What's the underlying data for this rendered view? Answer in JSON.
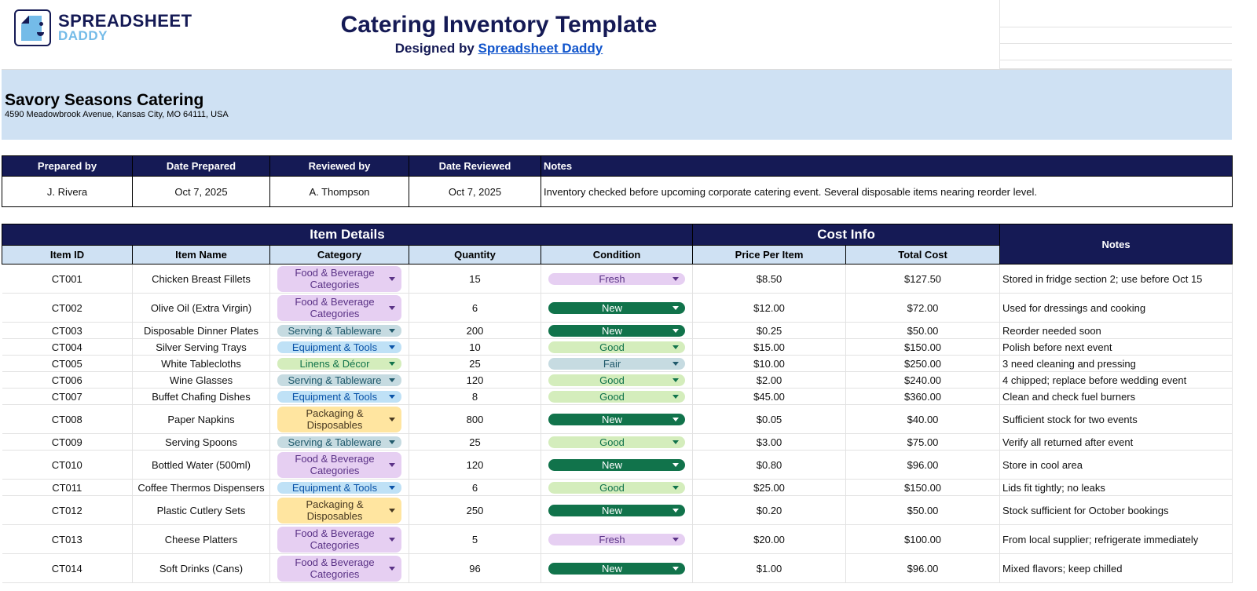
{
  "brand": {
    "line1": "SPREADSHEET",
    "line2": "DADDY"
  },
  "header": {
    "title": "Catering Inventory Template",
    "designed_by": "Designed by",
    "designer_link": "Spreadsheet Daddy"
  },
  "company": {
    "name": "Savory Seasons Catering",
    "address": "4590 Meadowbrook Avenue, Kansas City, MO 64111, USA"
  },
  "meta": {
    "headers": [
      "Prepared by",
      "Date Prepared",
      "Reviewed by",
      "Date Reviewed",
      "Notes"
    ],
    "values": [
      "J. Rivera",
      "Oct 7, 2025",
      "A. Thompson",
      "Oct 7, 2025",
      "Inventory checked before upcoming corporate catering event. Several disposable items nearing reorder level."
    ]
  },
  "inventory": {
    "group_item": "Item Details",
    "group_cost": "Cost Info",
    "notes_header": "Notes",
    "columns": [
      "Item ID",
      "Item Name",
      "Category",
      "Quantity",
      "Condition",
      "Price Per Item",
      "Total Cost"
    ],
    "category_colors": {
      "Food & Beverage Categories": {
        "bg": "#e6cff2",
        "fg": "#5a3286"
      },
      "Serving & Tableware": {
        "bg": "#c6dbe1",
        "fg": "#215a6c"
      },
      "Equipment & Tools": {
        "bg": "#bfe1f6",
        "fg": "#0a53a8"
      },
      "Linens & Décor": {
        "bg": "#d4edbc",
        "fg": "#11734b"
      },
      "Packaging & Disposables": {
        "bg": "#ffe5a0",
        "fg": "#473821"
      }
    },
    "condition_colors": {
      "Fresh": {
        "bg": "#e6cff2",
        "fg": "#5a3286"
      },
      "New": {
        "bg": "#11734b",
        "fg": "#ffffff"
      },
      "Good": {
        "bg": "#d4edbc",
        "fg": "#11734b"
      },
      "Fair": {
        "bg": "#c6dbe1",
        "fg": "#215a6c"
      }
    },
    "rows": [
      {
        "id": "CT001",
        "name": "Chicken Breast Fillets",
        "category": "Food & Beverage Categories",
        "qty": "15",
        "condition": "Fresh",
        "price": "$8.50",
        "total": "$127.50",
        "notes": "Stored in fridge section 2; use before Oct 15"
      },
      {
        "id": "CT002",
        "name": "Olive Oil (Extra Virgin)",
        "category": "Food & Beverage Categories",
        "qty": "6",
        "condition": "New",
        "price": "$12.00",
        "total": "$72.00",
        "notes": "Used for dressings and cooking"
      },
      {
        "id": "CT003",
        "name": "Disposable Dinner Plates",
        "category": "Serving & Tableware",
        "qty": "200",
        "condition": "New",
        "price": "$0.25",
        "total": "$50.00",
        "notes": "Reorder needed soon"
      },
      {
        "id": "CT004",
        "name": "Silver Serving Trays",
        "category": "Equipment & Tools",
        "qty": "10",
        "condition": "Good",
        "price": "$15.00",
        "total": "$150.00",
        "notes": "Polish before next event"
      },
      {
        "id": "CT005",
        "name": "White Tablecloths",
        "category": "Linens & Décor",
        "qty": "25",
        "condition": "Fair",
        "price": "$10.00",
        "total": "$250.00",
        "notes": "3 need cleaning and pressing"
      },
      {
        "id": "CT006",
        "name": "Wine Glasses",
        "category": "Serving & Tableware",
        "qty": "120",
        "condition": "Good",
        "price": "$2.00",
        "total": "$240.00",
        "notes": "4 chipped; replace before wedding event"
      },
      {
        "id": "CT007",
        "name": "Buffet Chafing Dishes",
        "category": "Equipment & Tools",
        "qty": "8",
        "condition": "Good",
        "price": "$45.00",
        "total": "$360.00",
        "notes": "Clean and check fuel burners"
      },
      {
        "id": "CT008",
        "name": "Paper Napkins",
        "category": "Packaging & Disposables",
        "qty": "800",
        "condition": "New",
        "price": "$0.05",
        "total": "$40.00",
        "notes": "Sufficient stock for two events"
      },
      {
        "id": "CT009",
        "name": "Serving Spoons",
        "category": "Serving & Tableware",
        "qty": "25",
        "condition": "Good",
        "price": "$3.00",
        "total": "$75.00",
        "notes": "Verify all returned after event"
      },
      {
        "id": "CT010",
        "name": "Bottled Water (500ml)",
        "category": "Food & Beverage Categories",
        "qty": "120",
        "condition": "New",
        "price": "$0.80",
        "total": "$96.00",
        "notes": "Store in cool area"
      },
      {
        "id": "CT011",
        "name": "Coffee Thermos Dispensers",
        "category": "Equipment & Tools",
        "qty": "6",
        "condition": "Good",
        "price": "$25.00",
        "total": "$150.00",
        "notes": "Lids fit tightly; no leaks"
      },
      {
        "id": "CT012",
        "name": "Plastic Cutlery Sets",
        "category": "Packaging & Disposables",
        "qty": "250",
        "condition": "New",
        "price": "$0.20",
        "total": "$50.00",
        "notes": "Stock sufficient for October bookings"
      },
      {
        "id": "CT013",
        "name": "Cheese Platters",
        "category": "Food & Beverage Categories",
        "qty": "5",
        "condition": "Fresh",
        "price": "$20.00",
        "total": "$100.00",
        "notes": "From local supplier; refrigerate immediately"
      },
      {
        "id": "CT014",
        "name": "Soft Drinks (Cans)",
        "category": "Food & Beverage Categories",
        "qty": "96",
        "condition": "New",
        "price": "$1.00",
        "total": "$96.00",
        "notes": "Mixed flavors; keep chilled"
      }
    ]
  }
}
